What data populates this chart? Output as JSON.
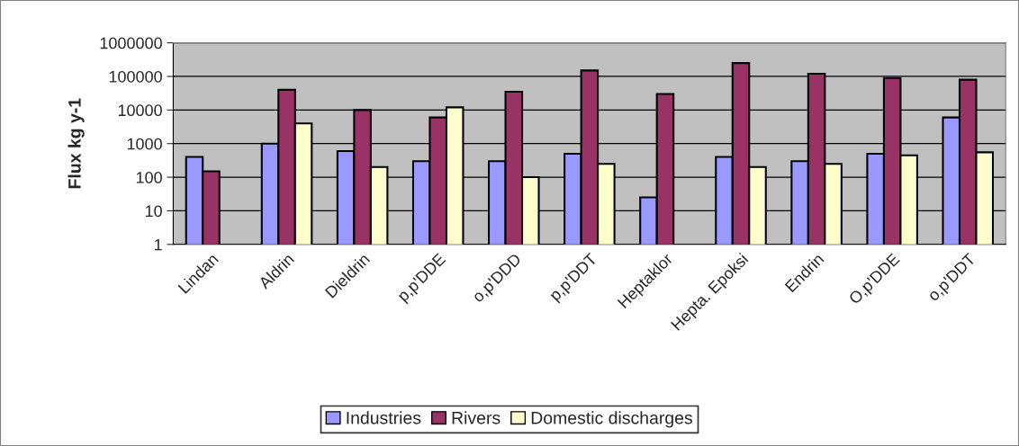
{
  "chart_data": {
    "type": "bar",
    "ylabel": "Flux kg y-1",
    "categories": [
      "Lindan",
      "Aldrin",
      "Dieldrin",
      "p,p'DDE",
      "o,p'DDD",
      "p,p'DDT",
      "Heptaklor",
      "Hepta. Epoksi",
      "Endrin",
      "O,p'DDE",
      "o,p'DDT"
    ],
    "series": [
      {
        "name": "Industries",
        "color": "#9999ff",
        "values": [
          400,
          1000,
          600,
          300,
          300,
          500,
          25,
          400,
          300,
          500,
          6000
        ]
      },
      {
        "name": "Rivers",
        "color": "#993366",
        "values": [
          150,
          40000,
          10000,
          6000,
          35000,
          150000,
          30000,
          250000,
          120000,
          90000,
          80000
        ]
      },
      {
        "name": "Domestic discharges",
        "color": "#ffffcc",
        "values": [
          null,
          4000,
          200,
          12000,
          100,
          250,
          null,
          200,
          250,
          450,
          550
        ]
      }
    ],
    "log": "y",
    "ylim": [
      1,
      1000000
    ],
    "yticks": [
      1,
      10,
      100,
      1000,
      10000,
      100000,
      1000000
    ],
    "grid": "y",
    "legend": "bottom"
  }
}
